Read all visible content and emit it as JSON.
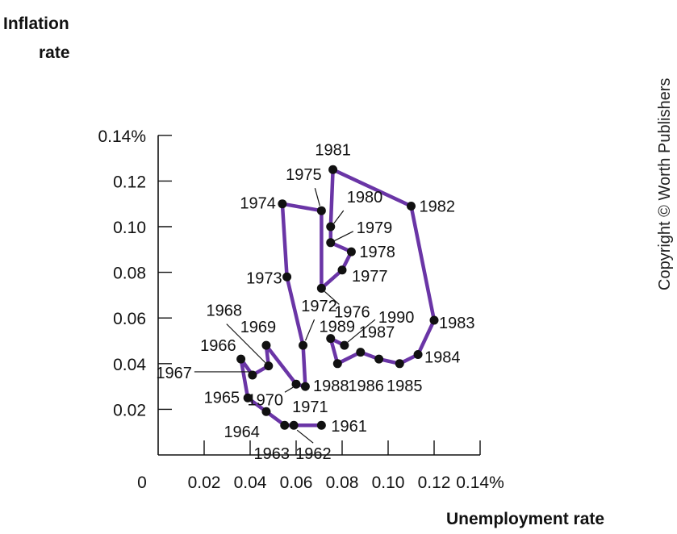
{
  "chart_data": {
    "type": "line",
    "title": "",
    "xlabel": "Unemployment rate",
    "ylabel": "Inflation rate",
    "xlim": [
      0,
      0.14
    ],
    "ylim": [
      0,
      0.14
    ],
    "x_ticks": [
      "0",
      "0.02",
      "0.04",
      "0.06",
      "0.08",
      "0.10",
      "0.12",
      "0.14%"
    ],
    "y_ticks": [
      "0.02",
      "0.04",
      "0.06",
      "0.08",
      "0.10",
      "0.12",
      "0.14%"
    ],
    "grid": false,
    "series_color": "#6a35a6",
    "points": [
      {
        "year": "1961",
        "x": 0.071,
        "y": 0.013
      },
      {
        "year": "1962",
        "x": 0.059,
        "y": 0.013
      },
      {
        "year": "1963",
        "x": 0.055,
        "y": 0.013
      },
      {
        "year": "1964",
        "x": 0.047,
        "y": 0.019
      },
      {
        "year": "1965",
        "x": 0.039,
        "y": 0.025
      },
      {
        "year": "1966",
        "x": 0.036,
        "y": 0.042
      },
      {
        "year": "1967",
        "x": 0.041,
        "y": 0.035
      },
      {
        "year": "1968",
        "x": 0.048,
        "y": 0.039
      },
      {
        "year": "1969",
        "x": 0.047,
        "y": 0.048
      },
      {
        "year": "1970",
        "x": 0.06,
        "y": 0.031
      },
      {
        "year": "1971",
        "x": 0.064,
        "y": 0.03
      },
      {
        "year": "1972",
        "x": 0.063,
        "y": 0.048
      },
      {
        "year": "1973",
        "x": 0.056,
        "y": 0.078
      },
      {
        "year": "1974",
        "x": 0.054,
        "y": 0.11
      },
      {
        "year": "1975",
        "x": 0.071,
        "y": 0.107
      },
      {
        "year": "1976",
        "x": 0.071,
        "y": 0.073
      },
      {
        "year": "1977",
        "x": 0.08,
        "y": 0.081
      },
      {
        "year": "1978",
        "x": 0.084,
        "y": 0.089
      },
      {
        "year": "1979",
        "x": 0.075,
        "y": 0.093
      },
      {
        "year": "1980",
        "x": 0.075,
        "y": 0.1
      },
      {
        "year": "1981",
        "x": 0.076,
        "y": 0.125
      },
      {
        "year": "1982",
        "x": 0.11,
        "y": 0.109
      },
      {
        "year": "1983",
        "x": 0.12,
        "y": 0.059
      },
      {
        "year": "1984",
        "x": 0.113,
        "y": 0.044
      },
      {
        "year": "1985",
        "x": 0.105,
        "y": 0.04
      },
      {
        "year": "1986",
        "x": 0.096,
        "y": 0.042
      },
      {
        "year": "1987",
        "x": 0.088,
        "y": 0.045
      },
      {
        "year": "1988",
        "x": 0.078,
        "y": 0.04
      },
      {
        "year": "1989",
        "x": 0.075,
        "y": 0.051
      },
      {
        "year": "1990",
        "x": 0.081,
        "y": 0.048
      }
    ]
  },
  "copyright": "Copyright © Worth Publishers"
}
